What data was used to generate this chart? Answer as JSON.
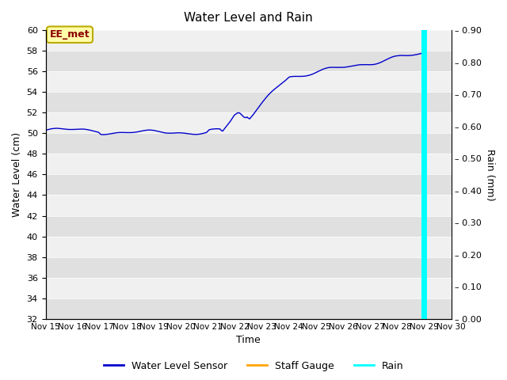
{
  "title": "Water Level and Rain",
  "xlabel": "Time",
  "ylabel_left": "Water Level (cm)",
  "ylabel_right": "Rain (mm)",
  "ylim_left": [
    32,
    60
  ],
  "ylim_right": [
    0.0,
    0.9
  ],
  "yticks_left": [
    32,
    34,
    36,
    38,
    40,
    42,
    44,
    46,
    48,
    50,
    52,
    54,
    56,
    58,
    60
  ],
  "yticks_right": [
    0.0,
    0.1,
    0.2,
    0.3,
    0.4,
    0.5,
    0.6,
    0.7,
    0.8,
    0.9
  ],
  "xtick_labels": [
    "Nov 15",
    "Nov 16",
    "Nov 17",
    "Nov 18",
    "Nov 19",
    "Nov 20",
    "Nov 21",
    "Nov 22",
    "Nov 23",
    "Nov 24",
    "Nov 25",
    "Nov 26",
    "Nov 27",
    "Nov 28",
    "Nov 29",
    "Nov 30"
  ],
  "water_level_color": "#0000CC",
  "staff_gauge_color": "#FFA500",
  "rain_color": "#00FFFF",
  "bg_dark": "#E0E0E0",
  "bg_light": "#F0F0F0",
  "annotation_text": "EE_met",
  "annotation_bg": "#FFFFAA",
  "annotation_border": "#BBAA00",
  "annotation_text_color": "#8B0000",
  "legend_labels": [
    "Water Level Sensor",
    "Staff Gauge",
    "Rain"
  ],
  "figsize": [
    6.4,
    4.8
  ],
  "dpi": 100
}
